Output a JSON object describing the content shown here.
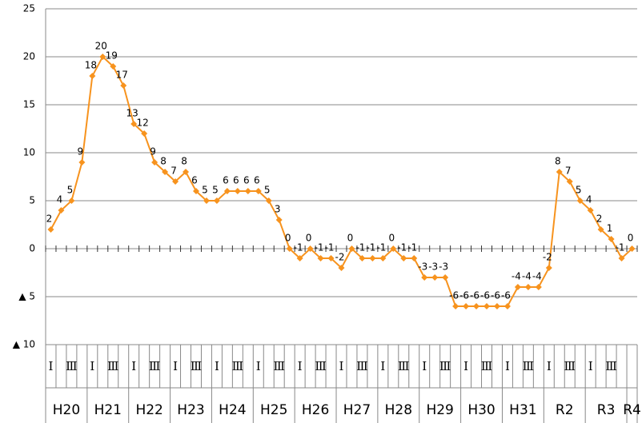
{
  "chart_data": {
    "type": "line",
    "categories": [
      "Ⅰ",
      null,
      "Ⅲ",
      null,
      "Ⅰ",
      null,
      "Ⅲ",
      null,
      "Ⅰ",
      null,
      "Ⅲ",
      null,
      "Ⅰ",
      null,
      "Ⅲ",
      null,
      "Ⅰ",
      null,
      "Ⅲ",
      null,
      "Ⅰ",
      null,
      "Ⅲ",
      null,
      "Ⅰ",
      null,
      "Ⅲ",
      null,
      "Ⅰ",
      null,
      "Ⅲ",
      null,
      "Ⅰ",
      null,
      "Ⅲ",
      null,
      "Ⅰ",
      null,
      "Ⅲ",
      null,
      "Ⅰ",
      null,
      "Ⅲ",
      null,
      "Ⅰ",
      null,
      "Ⅲ",
      null,
      "Ⅰ",
      null,
      "Ⅲ",
      null,
      "Ⅰ",
      null,
      "Ⅲ",
      null,
      null
    ],
    "groups": [
      "H20",
      "H21",
      "H22",
      "H23",
      "H24",
      "H25",
      "H26",
      "H27",
      "H28",
      "H29",
      "H30",
      "H31",
      "R2",
      "R3",
      "R4"
    ],
    "series": [
      {
        "color": "#f7931e",
        "values": [
          2,
          4,
          5,
          9,
          18,
          20,
          19,
          17,
          13,
          12,
          9,
          8,
          7,
          8,
          6,
          5,
          5,
          6,
          6,
          6,
          6,
          5,
          3,
          0,
          -1,
          0,
          -1,
          -1,
          -2,
          0,
          -1,
          -1,
          -1,
          0,
          -1,
          -1,
          -3,
          -3,
          -3,
          -6,
          -6,
          -6,
          -6,
          -6,
          -6,
          -4,
          -4,
          -4,
          -2,
          8,
          7,
          5,
          4,
          2,
          1,
          -1,
          0
        ]
      }
    ],
    "ylim": [
      -10,
      25
    ],
    "yticks": [
      {
        "value": -10,
        "label": "▲ 10"
      },
      {
        "value": -5,
        "label": "▲ 5"
      },
      0,
      5,
      10,
      15,
      20,
      25
    ],
    "grid": true
  }
}
